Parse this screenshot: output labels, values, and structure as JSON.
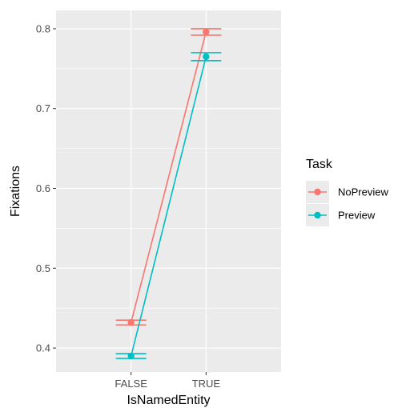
{
  "chart_data": {
    "type": "line",
    "title": "",
    "xlabel": "IsNamedEntity",
    "ylabel": "Fixations",
    "categories": [
      "FALSE",
      "TRUE"
    ],
    "ylim": [
      0.37,
      0.823
    ],
    "yticks": [
      0.4,
      0.5,
      0.6,
      0.7,
      0.8
    ],
    "ytick_labels": [
      "0.4",
      "0.5",
      "0.6",
      "0.7",
      "0.8"
    ],
    "grid": true,
    "legend": {
      "title": "Task",
      "position": "right"
    },
    "series": [
      {
        "name": "NoPreview",
        "color": "#F8766D",
        "values": [
          0.432,
          0.796
        ],
        "err_low": [
          0.429,
          0.792
        ],
        "err_high": [
          0.435,
          0.8
        ]
      },
      {
        "name": "Preview",
        "color": "#00BFC4",
        "values": [
          0.39,
          0.765
        ],
        "err_low": [
          0.387,
          0.76
        ],
        "err_high": [
          0.393,
          0.77
        ]
      }
    ],
    "panel_background": "#EBEBEB",
    "grid_color": "#FFFFFF"
  }
}
